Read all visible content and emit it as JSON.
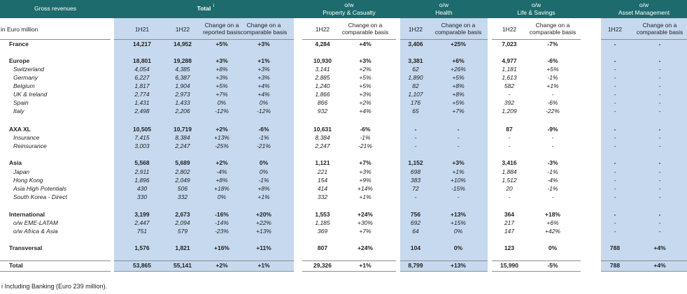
{
  "header": {
    "groups": [
      {
        "title": "Gross revenues"
      },
      {
        "title": "Total",
        "note": "i"
      },
      {
        "prefix": "o/w",
        "title": "Property & Casualty"
      },
      {
        "prefix": "o/w",
        "title": "Health"
      },
      {
        "prefix": "o/w",
        "title": "Life & Savings"
      },
      {
        "prefix": "o/w",
        "title": "Asset Management"
      }
    ],
    "unit": "in Euro million",
    "columns": [
      "1H21",
      "1H22",
      "Change on a reported basis",
      "Change on a comparable basis",
      "1H22",
      "Change on a comparable basis",
      "1H22",
      "Change on a comparable basis",
      "1H22",
      "Change on a comparable basis",
      "1H22",
      "Change on a comparable basis"
    ]
  },
  "table": {
    "rows": [
      {
        "label": "France",
        "cells": [
          "14,217",
          "14,952",
          "+5%",
          "+3%",
          "4,284",
          "+4%",
          "3,406",
          "+25%",
          "7,023",
          "-7%",
          "-",
          "-"
        ]
      },
      {
        "label": "Europe",
        "cells": [
          "18,801",
          "19,288",
          "+3%",
          "+1%",
          "10,930",
          "+3%",
          "3,381",
          "+6%",
          "4,977",
          "-6%",
          "-",
          "-"
        ]
      },
      {
        "label": "Switzerland",
        "cells": [
          "4,054",
          "4,385",
          "+8%",
          "+3%",
          "3,141",
          "+2%",
          "62",
          "+26%",
          "1,181",
          "+5%",
          "-",
          "-"
        ]
      },
      {
        "label": "Germany",
        "cells": [
          "6,227",
          "6,387",
          "+3%",
          "+3%",
          "2,885",
          "+5%",
          "1,890",
          "+5%",
          "1,613",
          "-1%",
          "-",
          "-"
        ]
      },
      {
        "label": "Belgium",
        "cells": [
          "1,817",
          "1,904",
          "+5%",
          "+4%",
          "1,240",
          "+5%",
          "82",
          "+8%",
          "582",
          "+1%",
          "-",
          "-"
        ]
      },
      {
        "label": "UK & Ireland",
        "cells": [
          "2,774",
          "2,973",
          "+7%",
          "+4%",
          "1,866",
          "+3%",
          "1,107",
          "+8%",
          "-",
          "-",
          "-",
          "-"
        ]
      },
      {
        "label": "Spain",
        "cells": [
          "1,431",
          "1,433",
          "0%",
          "0%",
          "866",
          "+2%",
          "176",
          "+5%",
          "392",
          "-6%",
          "-",
          "-"
        ]
      },
      {
        "label": "Italy",
        "cells": [
          "2,498",
          "2,206",
          "-12%",
          "-12%",
          "932",
          "+4%",
          "65",
          "+7%",
          "1,209",
          "-22%",
          "-",
          "-"
        ]
      },
      {
        "label": "AXA XL",
        "cells": [
          "10,505",
          "10,719",
          "+2%",
          "-6%",
          "10,631",
          "-6%",
          "-",
          "-",
          "87",
          "-9%",
          "-",
          "-"
        ]
      },
      {
        "label": "Insurance",
        "cells": [
          "7,415",
          "8,384",
          "+13%",
          "-1%",
          "8,384",
          "-1%",
          "-",
          "-",
          "-",
          "-",
          "-",
          "-"
        ]
      },
      {
        "label": "Reinsurance",
        "cells": [
          "3,003",
          "2,247",
          "-25%",
          "-21%",
          "2,247",
          "-21%",
          "-",
          "-",
          "-",
          "-",
          "-",
          "-"
        ]
      },
      {
        "label": "Asia",
        "cells": [
          "5,568",
          "5,689",
          "+2%",
          "0%",
          "1,121",
          "+7%",
          "1,152",
          "+3%",
          "3,416",
          "-3%",
          "-",
          "-"
        ]
      },
      {
        "label": "Japan",
        "cells": [
          "2,911",
          "2,802",
          "-4%",
          "0%",
          "221",
          "+3%",
          "698",
          "+1%",
          "1,884",
          "-1%",
          "-",
          "-"
        ]
      },
      {
        "label": "Hong Kong",
        "cells": [
          "1,896",
          "2,049",
          "+8%",
          "-1%",
          "154",
          "+9%",
          "383",
          "+10%",
          "1,512",
          "-4%",
          "-",
          "-"
        ]
      },
      {
        "label": "Asia High Potentials",
        "cells": [
          "430",
          "506",
          "+18%",
          "+8%",
          "414",
          "+14%",
          "72",
          "-15%",
          "20",
          "-1%",
          "-",
          "-"
        ]
      },
      {
        "label": "South Korea - Direct",
        "cells": [
          "330",
          "332",
          "0%",
          "+1%",
          "332",
          "+1%",
          "-",
          "-",
          "-",
          "-",
          "-",
          "-"
        ]
      },
      {
        "label": "International",
        "cells": [
          "3,199",
          "2,673",
          "-16%",
          "+20%",
          "1,553",
          "+24%",
          "756",
          "+13%",
          "364",
          "+18%",
          "-",
          "-"
        ]
      },
      {
        "label": "o/w EME-LATAM",
        "cells": [
          "2,447",
          "2,094",
          "-14%",
          "+22%",
          "1,185",
          "+30%",
          "692",
          "+15%",
          "217",
          "+6%",
          "-",
          "-"
        ]
      },
      {
        "label": "o/w Africa & Asia",
        "cells": [
          "751",
          "579",
          "-23%",
          "+13%",
          "369",
          "+7%",
          "64",
          "0%",
          "147",
          "+42%",
          "-",
          "-"
        ]
      },
      {
        "label": "Transversal",
        "cells": [
          "1,576",
          "1,821",
          "+16%",
          "+11%",
          "807",
          "+24%",
          "104",
          "0%",
          "123",
          "0%",
          "788",
          "+4%"
        ]
      },
      {
        "label": "Total",
        "cells": [
          "53,865",
          "55,141",
          "+2%",
          "+1%",
          "29,326",
          "+1%",
          "8,799",
          "+13%",
          "15,990",
          "-5%",
          "788",
          "+4%"
        ]
      }
    ]
  },
  "footnote": "i Including Banking (Euro 239 million)."
}
